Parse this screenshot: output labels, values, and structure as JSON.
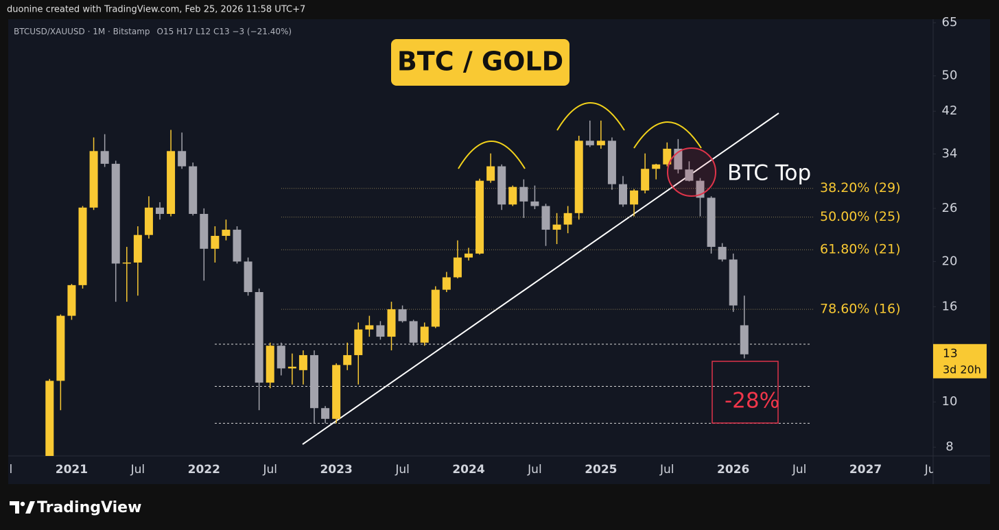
{
  "credit": "duonine created with TradingView.com, Feb 25, 2026 11:58 UTC+7",
  "brand": "TradingView",
  "chart_data": {
    "type": "candlestick",
    "title": "BTC / GOLD",
    "symbol": "BTCUSD/XAUUSD · 1M · Bitstamp",
    "ohlc_label": "O15 H17 L12 C13 −3 (−21.40%)",
    "up_color": "#f9c933",
    "down_color": "#a3a3ac",
    "log_scale": true,
    "grid": false,
    "x": [
      "2020-11",
      "2020-12",
      "2021-01",
      "2021-02",
      "2021-03",
      "2021-04",
      "2021-05",
      "2021-06",
      "2021-07",
      "2021-08",
      "2021-09",
      "2021-10",
      "2021-11",
      "2021-12",
      "2022-01",
      "2022-02",
      "2022-03",
      "2022-04",
      "2022-05",
      "2022-06",
      "2022-07",
      "2022-08",
      "2022-09",
      "2022-10",
      "2022-11",
      "2022-12",
      "2023-01",
      "2023-02",
      "2023-03",
      "2023-04",
      "2023-05",
      "2023-06",
      "2023-07",
      "2023-08",
      "2023-09",
      "2023-10",
      "2023-11",
      "2023-12",
      "2024-01",
      "2024-02",
      "2024-03",
      "2024-04",
      "2024-05",
      "2024-06",
      "2024-07",
      "2024-08",
      "2024-09",
      "2024-10",
      "2024-11",
      "2024-12",
      "2025-01",
      "2025-02",
      "2025-03",
      "2025-04",
      "2025-05",
      "2025-06",
      "2025-07",
      "2025-08",
      "2025-09",
      "2025-10",
      "2025-11",
      "2025-12",
      "2026-01",
      "2026-02"
    ],
    "open": [
      7.2,
      11.1,
      15.3,
      17.8,
      26.1,
      34.5,
      32.4,
      19.8,
      19.9,
      22.8,
      26.1,
      25.3,
      34.5,
      32.0,
      25.3,
      21.3,
      22.7,
      23.4,
      20.0,
      17.2,
      11.0,
      13.2,
      11.8,
      11.7,
      12.6,
      9.7,
      9.2,
      12.0,
      12.6,
      14.3,
      14.6,
      13.8,
      15.8,
      14.9,
      13.4,
      14.5,
      17.4,
      18.5,
      20.4,
      20.8,
      29.8,
      32.0,
      26.5,
      28.9,
      26.9,
      26.3,
      23.4,
      24.0,
      25.4,
      36.3,
      35.5,
      36.3,
      29.3,
      26.5,
      28.4,
      31.6,
      32.3,
      34.9,
      31.5,
      29.8,
      27.4,
      21.5,
      20.2,
      14.6
    ],
    "high": [
      11.2,
      15.4,
      17.9,
      26.3,
      36.9,
      37.5,
      32.9,
      21.5,
      23.8,
      27.6,
      26.8,
      38.3,
      37.8,
      32.6,
      26.0,
      23.8,
      24.6,
      23.8,
      20.4,
      17.5,
      13.4,
      13.4,
      12.7,
      12.9,
      12.9,
      9.8,
      12.1,
      13.4,
      14.8,
      15.3,
      14.9,
      16.4,
      16.1,
      15.0,
      14.8,
      17.7,
      19.0,
      22.2,
      21.4,
      30.1,
      34.1,
      32.3,
      29.1,
      30.0,
      29.1,
      26.6,
      25.4,
      26.3,
      37.2,
      40.1,
      40.1,
      36.9,
      30.5,
      28.6,
      34.1,
      32.4,
      36.0,
      36.6,
      32.8,
      30.2,
      27.6,
      21.9,
      20.8,
      16.9
    ],
    "low": [
      7.0,
      9.6,
      15.0,
      17.5,
      25.8,
      31.9,
      16.4,
      16.4,
      16.9,
      22.4,
      24.6,
      25.0,
      31.6,
      25.1,
      18.2,
      19.9,
      22.2,
      19.8,
      16.9,
      9.6,
      10.7,
      11.4,
      10.9,
      10.9,
      9.0,
      9.0,
      9.0,
      11.7,
      10.9,
      13.8,
      13.6,
      12.9,
      14.8,
      13.2,
      13.2,
      14.4,
      17.2,
      18.4,
      20.1,
      20.7,
      29.5,
      25.8,
      26.3,
      24.8,
      25.9,
      21.6,
      21.8,
      23.0,
      24.6,
      35.2,
      34.9,
      28.5,
      26.2,
      25.0,
      28.0,
      30.0,
      32.0,
      30.9,
      29.7,
      25.0,
      20.8,
      20.0,
      15.6,
      12.4
    ],
    "close": [
      11.1,
      15.3,
      17.8,
      26.1,
      34.5,
      32.4,
      19.8,
      19.9,
      22.8,
      26.1,
      25.3,
      34.5,
      32.0,
      25.3,
      21.3,
      22.7,
      23.4,
      20.0,
      17.2,
      11.0,
      13.2,
      11.8,
      11.9,
      12.6,
      9.7,
      9.2,
      12.0,
      12.6,
      14.3,
      14.6,
      13.8,
      15.8,
      14.9,
      13.4,
      14.5,
      17.4,
      18.5,
      20.4,
      20.8,
      29.8,
      32.0,
      26.5,
      28.9,
      26.9,
      26.3,
      23.4,
      24.0,
      25.4,
      36.3,
      35.5,
      36.3,
      29.3,
      26.5,
      28.4,
      31.6,
      32.3,
      34.9,
      31.5,
      29.8,
      27.4,
      21.5,
      20.2,
      16.1,
      12.65
    ],
    "last_price_label": "13",
    "countdown": "3d 20h",
    "xlim": [
      "2020-07",
      "2027-07"
    ],
    "xticks": [
      {
        "value": "2020-07",
        "label": "Jul"
      },
      {
        "value": "2021-01",
        "label": "2021"
      },
      {
        "value": "2021-07",
        "label": "Jul"
      },
      {
        "value": "2022-01",
        "label": "2022"
      },
      {
        "value": "2022-07",
        "label": "Jul"
      },
      {
        "value": "2023-01",
        "label": "2023"
      },
      {
        "value": "2023-07",
        "label": "Jul"
      },
      {
        "value": "2024-01",
        "label": "2024"
      },
      {
        "value": "2024-07",
        "label": "Jul"
      },
      {
        "value": "2025-01",
        "label": "2025"
      },
      {
        "value": "2025-07",
        "label": "Jul"
      },
      {
        "value": "2026-01",
        "label": "2026"
      },
      {
        "value": "2026-07",
        "label": "Jul"
      },
      {
        "value": "2027-01",
        "label": "2027"
      },
      {
        "value": "2027-07",
        "label": "Jul"
      }
    ],
    "ylim": [
      7.66,
      65.7
    ],
    "yticks": [
      8,
      10,
      16,
      20,
      26,
      34,
      42,
      50,
      65
    ],
    "fib_levels": [
      {
        "value": 28.7,
        "label": "38.20% (29)"
      },
      {
        "value": 24.9,
        "label": "50.00% (25)"
      },
      {
        "value": 21.2,
        "label": "61.80% (21)"
      },
      {
        "value": 15.8,
        "label": "78.60% (16)"
      }
    ],
    "levels": [
      13.3,
      10.8,
      9.0
    ],
    "annotations": {
      "top": "BTC Top",
      "drop": "-28%"
    }
  }
}
